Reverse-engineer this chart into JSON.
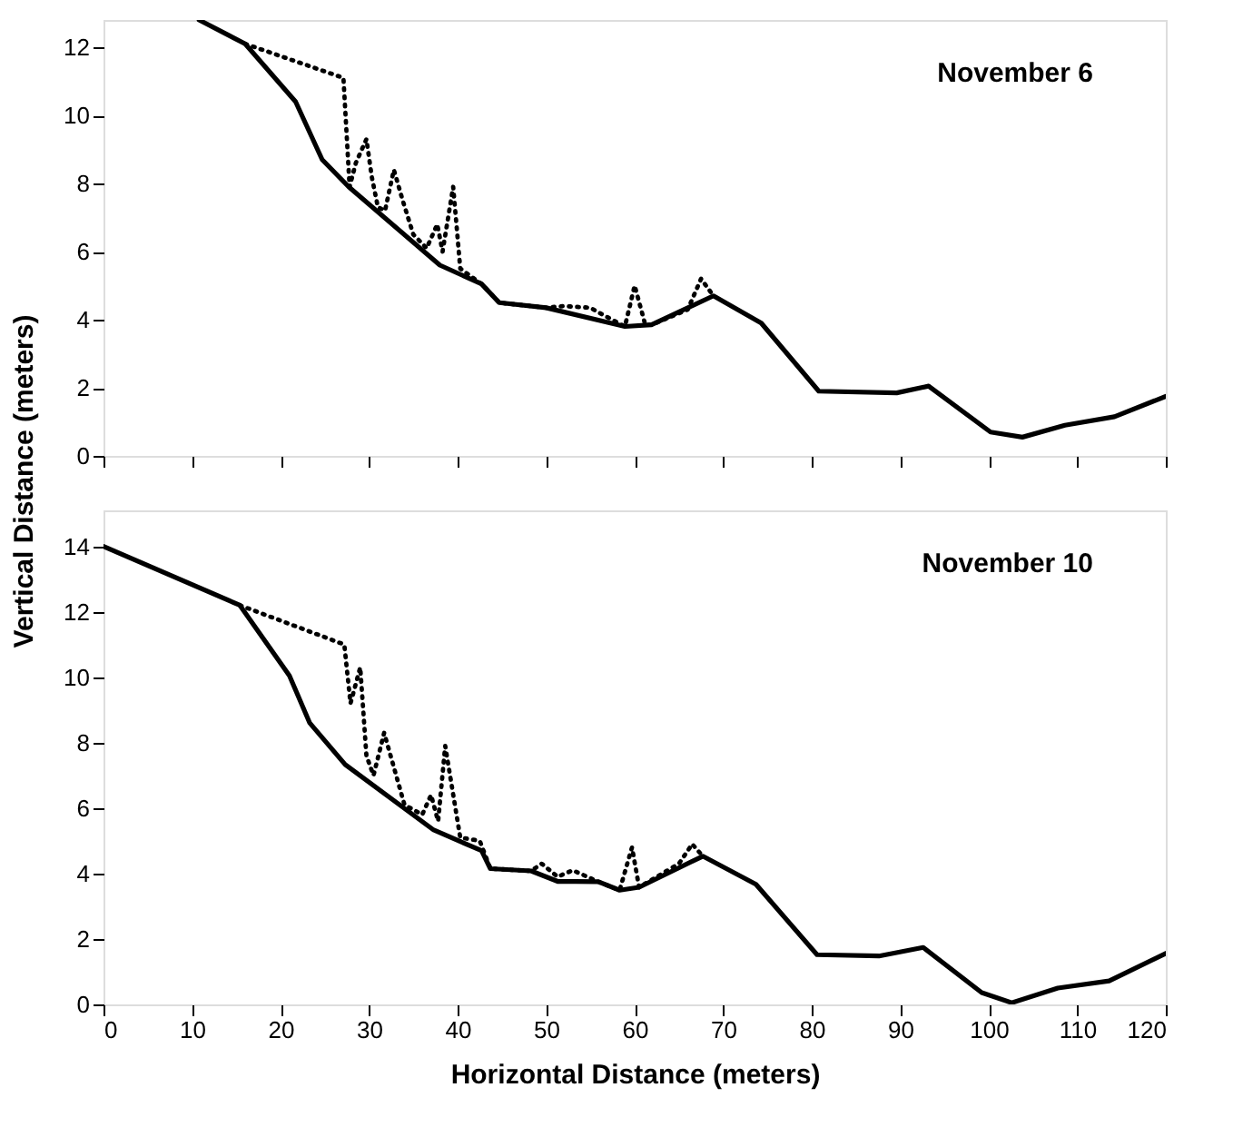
{
  "chart_data": [
    {
      "type": "line",
      "annotations": [
        "November 6"
      ],
      "ylabel": "Vertical Distance (meters)",
      "xlim": [
        0,
        120
      ],
      "xticks": [
        0,
        10,
        20,
        30,
        40,
        50,
        60,
        70,
        80,
        90,
        100,
        110,
        120
      ],
      "ylim": [
        0,
        12.8
      ],
      "yticks": [
        0,
        2,
        4,
        6,
        8,
        10,
        12
      ],
      "tick_labels": "y",
      "grid": false,
      "marker": "none",
      "series": [
        {
          "color": "#000000",
          "line_style": "solid",
          "x": [
            10.8,
            16,
            21.7,
            24.7,
            27.7,
            38,
            42.7,
            44.7,
            50,
            58.9,
            61.9,
            68.9,
            74.3,
            80.8,
            89.6,
            93.2,
            100.2,
            103.8,
            108.6,
            114.2,
            120
          ],
          "values": [
            12.8,
            12.1,
            10.4,
            8.7,
            7.9,
            5.6,
            5.05,
            4.5,
            4.35,
            3.8,
            3.85,
            4.7,
            3.9,
            1.9,
            1.85,
            2.05,
            0.7,
            0.55,
            0.9,
            1.15,
            1.75
          ]
        },
        {
          "color": "#000000",
          "line_style": "dotted",
          "x": [
            16,
            27.1,
            27.8,
            28.5,
            29.7,
            30.3,
            31,
            31.8,
            32.8,
            33.8,
            35,
            36.5,
            37.7,
            38.3,
            39.5,
            40.3,
            42.7,
            44.7,
            50,
            52,
            55,
            56,
            58.9,
            60,
            61.2,
            61.9,
            66,
            67.5,
            68.9
          ],
          "values": [
            12.1,
            11.1,
            7.9,
            8.6,
            9.3,
            8.2,
            7.3,
            7.2,
            8.4,
            7.5,
            6.5,
            6.1,
            6.8,
            6.0,
            7.9,
            5.5,
            5.05,
            4.5,
            4.35,
            4.4,
            4.35,
            4.2,
            3.8,
            5.0,
            3.85,
            3.85,
            4.3,
            5.2,
            4.7
          ]
        }
      ]
    },
    {
      "type": "line",
      "annotations": [
        "November 10"
      ],
      "xlabel": "Horizontal Distance (meters)",
      "xlim": [
        0,
        120
      ],
      "xticks": [
        0,
        10,
        20,
        30,
        40,
        50,
        60,
        70,
        80,
        90,
        100,
        110,
        120
      ],
      "ylim": [
        0,
        15.1
      ],
      "yticks": [
        0,
        2,
        4,
        6,
        8,
        10,
        12,
        14
      ],
      "grid": false,
      "marker": "none",
      "series": [
        {
          "color": "#000000",
          "line_style": "solid",
          "x": [
            0,
            15.4,
            21,
            23.3,
            27.3,
            37.3,
            42.7,
            43.7,
            48.3,
            51.3,
            53.3,
            55.9,
            58.3,
            60.5,
            67.7,
            73.7,
            80.6,
            87.6,
            92.6,
            99.2,
            102.6,
            107.8,
            113.6,
            120
          ],
          "values": [
            14,
            12.2,
            10.05,
            8.6,
            7.33,
            5.33,
            4.7,
            4.15,
            4.08,
            3.76,
            3.76,
            3.75,
            3.49,
            3.58,
            4.53,
            3.67,
            1.52,
            1.48,
            1.74,
            0.36,
            0.05,
            0.5,
            0.72,
            1.56
          ]
        },
        {
          "color": "#000000",
          "line_style": "dotted",
          "x": [
            15.4,
            27.2,
            27.9,
            29,
            29.7,
            30.5,
            31.7,
            34,
            36,
            37,
            37.8,
            38.6,
            40.3,
            42.5,
            43.7,
            48.3,
            49.5,
            51.3,
            53,
            55.9,
            58.3,
            59.7,
            60.5,
            65,
            66.5,
            67.7
          ],
          "values": [
            12.2,
            11.0,
            9.2,
            10.3,
            7.6,
            7.0,
            8.3,
            6.1,
            5.8,
            6.4,
            5.6,
            7.9,
            5.1,
            5.0,
            4.15,
            4.08,
            4.3,
            3.9,
            4.1,
            3.75,
            3.49,
            4.8,
            3.58,
            4.3,
            4.9,
            4.53
          ]
        }
      ]
    }
  ]
}
